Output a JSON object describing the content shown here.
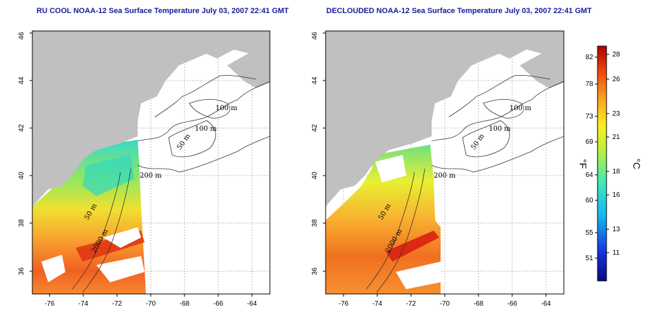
{
  "panels": [
    {
      "title": "RU COOL NOAA-12 Sea Surface Temperature July 03, 2007 22:41 GMT",
      "contour_labels": [
        "100 m",
        "100 m",
        "50 m",
        "200 m",
        "50 m",
        "2000 m"
      ]
    },
    {
      "title": "DECLOUDED NOAA-12 Sea Surface Temperature July 03, 2007 22:41 GMT",
      "contour_labels": [
        "100 m",
        "100 m",
        "50 m",
        "200 m",
        "50 m",
        "2000 m"
      ]
    }
  ],
  "x_ticks": [
    "-76",
    "-74",
    "-72",
    "-70",
    "-68",
    "-66",
    "-64"
  ],
  "y_ticks": [
    "36",
    "38",
    "40",
    "42",
    "44",
    "46"
  ],
  "colorbar": {
    "fahrenheit_ticks": [
      "82",
      "78",
      "73",
      "69",
      "64",
      "60",
      "55",
      "51"
    ],
    "celsius_ticks": [
      "28",
      "26",
      "23",
      "21",
      "18",
      "16",
      "13",
      "11"
    ],
    "fahrenheit_label": "°F",
    "celsius_label": "°C"
  },
  "colors": {
    "land": "#c0c0c0",
    "title": "#1a1a9a",
    "grid": "#bbbbbb"
  }
}
